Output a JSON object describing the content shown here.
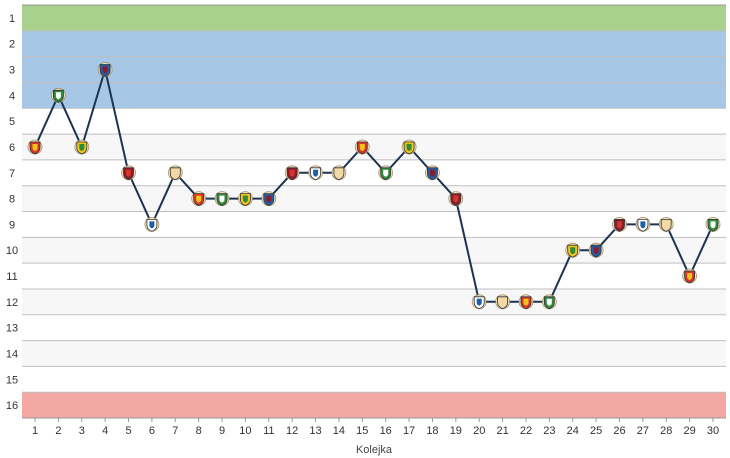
{
  "chart_data": {
    "type": "line",
    "xlabel": "Kolejka",
    "ylabel": "",
    "x": [
      1,
      2,
      3,
      4,
      5,
      6,
      7,
      8,
      9,
      10,
      11,
      12,
      13,
      14,
      15,
      16,
      17,
      18,
      19,
      20,
      21,
      22,
      23,
      24,
      25,
      26,
      27,
      28,
      29,
      30
    ],
    "y_ticks": [
      "1",
      "2",
      "3",
      "4",
      "5",
      "6",
      "7",
      "8",
      "9",
      "10",
      "11",
      "12",
      "13",
      "14",
      "15",
      "16"
    ],
    "ylim": [
      16,
      1
    ],
    "y_reversed": true,
    "grid": true,
    "zones": [
      {
        "from": 1,
        "to": 1,
        "color": "#a9d18e"
      },
      {
        "from": 2,
        "to": 4,
        "color": "#a6c8e6"
      },
      {
        "from": 16,
        "to": 16,
        "color": "#f2a7a3"
      }
    ],
    "line_color": "#1c3352",
    "series": [
      {
        "values": [
          6,
          4,
          6,
          3,
          7,
          9,
          7,
          8,
          8,
          8,
          8,
          7,
          7,
          7,
          6,
          7,
          6,
          7,
          8,
          12,
          12,
          12,
          12,
          10,
          10,
          9,
          9,
          9,
          11,
          9
        ]
      }
    ],
    "marker_icons": [
      "crest",
      "crest",
      "crest",
      "crest",
      "crest",
      "crest",
      "crest",
      "crest",
      "crest",
      "crest",
      "crest",
      "crest",
      "crest",
      "crest",
      "crest",
      "crest",
      "crest",
      "crest",
      "crest",
      "crest",
      "crest",
      "crest",
      "crest",
      "crest",
      "crest",
      "crest",
      "crest",
      "crest",
      "crest",
      "crest"
    ]
  }
}
